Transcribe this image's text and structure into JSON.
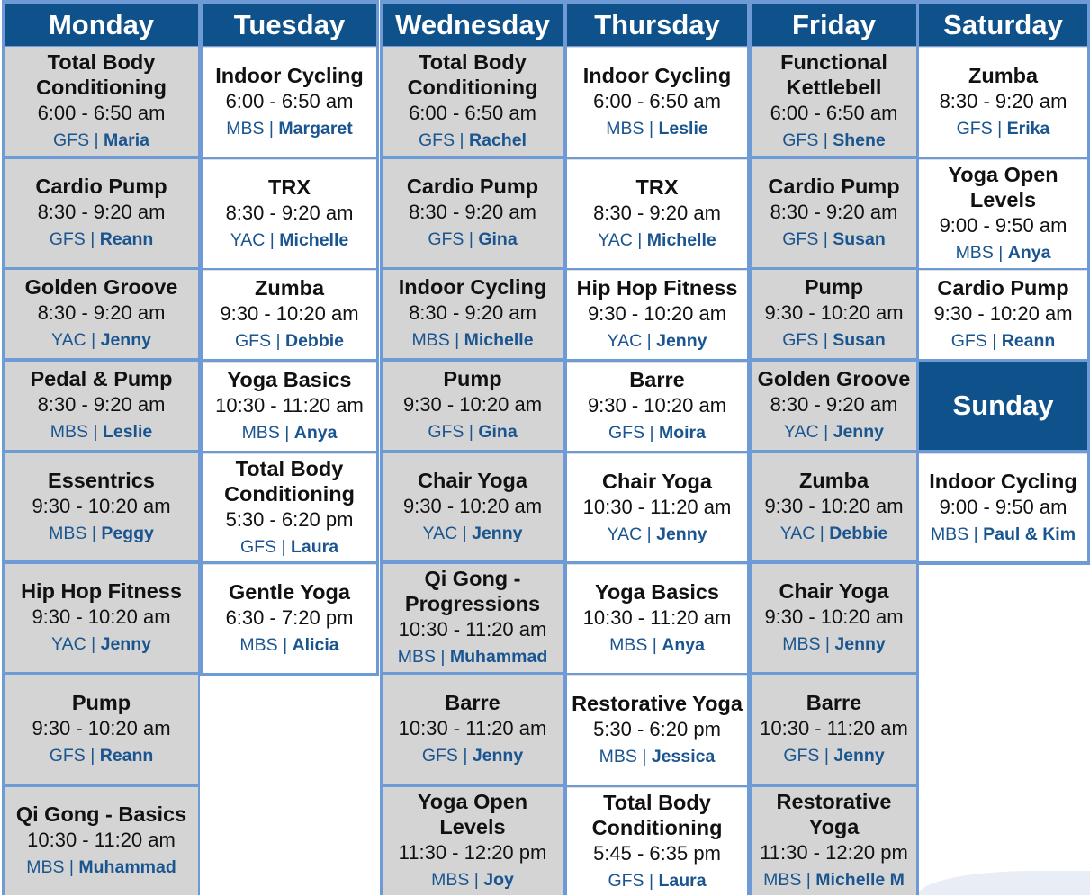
{
  "colors": {
    "header": "#0f528b",
    "border": "#6e9bd6",
    "cell_gray": "#d4d4d4",
    "location_text": "#1a5590"
  },
  "days": [
    {
      "name": "Monday",
      "classes": [
        {
          "name": "Total Body Conditioning",
          "time": "6:00 - 6:50 am",
          "location": "GFS",
          "instructor": "Maria"
        },
        {
          "name": "Cardio Pump",
          "time": "8:30 - 9:20 am",
          "location": "GFS",
          "instructor": "Reann"
        },
        {
          "name": "Golden Groove",
          "time": "8:30 - 9:20 am",
          "location": "YAC",
          "instructor": "Jenny"
        },
        {
          "name": "Pedal & Pump",
          "time": "8:30 - 9:20 am",
          "location": "MBS",
          "instructor": "Leslie"
        },
        {
          "name": "Essentrics",
          "time": "9:30 - 10:20 am",
          "location": "MBS",
          "instructor": "Peggy"
        },
        {
          "name": "Hip Hop Fitness",
          "time": "9:30 - 10:20 am",
          "location": "YAC",
          "instructor": "Jenny"
        },
        {
          "name": "Pump",
          "time": "9:30 - 10:20 am",
          "location": "GFS",
          "instructor": "Reann"
        },
        {
          "name": "Qi Gong - Basics",
          "time": "10:30 - 11:20 am",
          "location": "MBS",
          "instructor": "Muhammad"
        }
      ]
    },
    {
      "name": "Tuesday",
      "classes": [
        {
          "name": "Indoor Cycling",
          "time": "6:00 - 6:50 am",
          "location": "MBS",
          "instructor": "Margaret"
        },
        {
          "name": "TRX",
          "time": "8:30 - 9:20 am",
          "location": "YAC",
          "instructor": "Michelle"
        },
        {
          "name": "Zumba",
          "time": "9:30 - 10:20 am",
          "location": "GFS",
          "instructor": "Debbie"
        },
        {
          "name": "Yoga Basics",
          "time": "10:30 - 11:20 am",
          "location": "MBS",
          "instructor": "Anya"
        },
        {
          "name": "Total Body Conditioning",
          "time": "5:30 - 6:20 pm",
          "location": "GFS",
          "instructor": "Laura"
        },
        {
          "name": "Gentle Yoga",
          "time": "6:30 - 7:20 pm",
          "location": "MBS",
          "instructor": "Alicia"
        }
      ]
    },
    {
      "name": "Wednesday",
      "classes": [
        {
          "name": "Total Body Conditioning",
          "time": "6:00 - 6:50 am",
          "location": "GFS",
          "instructor": "Rachel"
        },
        {
          "name": "Cardio Pump",
          "time": "8:30 - 9:20 am",
          "location": "GFS",
          "instructor": "Gina"
        },
        {
          "name": "Indoor Cycling",
          "time": "8:30 - 9:20 am",
          "location": "MBS",
          "instructor": "Michelle"
        },
        {
          "name": "Pump",
          "time": "9:30 - 10:20 am",
          "location": "GFS",
          "instructor": "Gina"
        },
        {
          "name": "Chair Yoga",
          "time": "9:30 - 10:20 am",
          "location": "YAC",
          "instructor": "Jenny"
        },
        {
          "name": "Qi Gong - Progressions",
          "time": "10:30 - 11:20 am",
          "location": "MBS",
          "instructor": "Muhammad"
        },
        {
          "name": "Barre",
          "time": "10:30 - 11:20 am",
          "location": "GFS",
          "instructor": "Jenny"
        },
        {
          "name": "Yoga Open Levels",
          "time": "11:30 - 12:20 pm",
          "location": "MBS",
          "instructor": "Joy"
        }
      ]
    },
    {
      "name": "Thursday",
      "classes": [
        {
          "name": "Indoor Cycling",
          "time": "6:00 - 6:50 am",
          "location": "MBS",
          "instructor": "Leslie"
        },
        {
          "name": "TRX",
          "time": "8:30 - 9:20 am",
          "location": "YAC",
          "instructor": "Michelle"
        },
        {
          "name": "Hip Hop Fitness",
          "time": "9:30 - 10:20 am",
          "location": "YAC",
          "instructor": "Jenny"
        },
        {
          "name": "Barre",
          "time": "9:30 - 10:20 am",
          "location": "GFS",
          "instructor": "Moira"
        },
        {
          "name": "Chair Yoga",
          "time": "10:30 - 11:20 am",
          "location": "YAC",
          "instructor": "Jenny"
        },
        {
          "name": "Yoga Basics",
          "time": "10:30 - 11:20 am",
          "location": "MBS",
          "instructor": "Anya"
        },
        {
          "name": "Restorative Yoga",
          "time": "5:30 - 6:20 pm",
          "location": "MBS",
          "instructor": "Jessica"
        },
        {
          "name": "Total Body Conditioning",
          "time": "5:45 - 6:35 pm",
          "location": "GFS",
          "instructor": "Laura"
        }
      ]
    },
    {
      "name": "Friday",
      "classes": [
        {
          "name": "Functional Kettlebell",
          "time": "6:00 - 6:50 am",
          "location": "GFS",
          "instructor": "Shene"
        },
        {
          "name": "Cardio Pump",
          "time": "8:30 - 9:20 am",
          "location": "GFS",
          "instructor": "Susan"
        },
        {
          "name": "Pump",
          "time": "9:30 - 10:20 am",
          "location": "GFS",
          "instructor": "Susan"
        },
        {
          "name": "Golden Groove",
          "time": "8:30 - 9:20 am",
          "location": "YAC",
          "instructor": "Jenny"
        },
        {
          "name": "Zumba",
          "time": "9:30 - 10:20 am",
          "location": "YAC",
          "instructor": "Debbie"
        },
        {
          "name": "Chair Yoga",
          "time": "9:30 - 10:20 am",
          "location": "MBS",
          "instructor": "Jenny"
        },
        {
          "name": "Barre",
          "time": "10:30 - 11:20 am",
          "location": "GFS",
          "instructor": "Jenny"
        },
        {
          "name": "Restorative Yoga",
          "time": "11:30 - 12:20 pm",
          "location": "MBS",
          "instructor": "Michelle M"
        }
      ]
    },
    {
      "name": "Saturday",
      "classes": [
        {
          "name": "Zumba",
          "time": "8:30 - 9:20 am",
          "location": "GFS",
          "instructor": "Erika"
        },
        {
          "name": "Yoga Open Levels",
          "time": "9:00 - 9:50 am",
          "location": "MBS",
          "instructor": "Anya"
        },
        {
          "name": "Cardio Pump",
          "time": "9:30 - 10:20 am",
          "location": "GFS",
          "instructor": "Reann"
        }
      ]
    },
    {
      "name": "Sunday",
      "classes": [
        {
          "name": "Indoor Cycling",
          "time": "9:00 - 9:50 am",
          "location": "MBS",
          "instructor": "Paul & Kim"
        }
      ]
    }
  ]
}
